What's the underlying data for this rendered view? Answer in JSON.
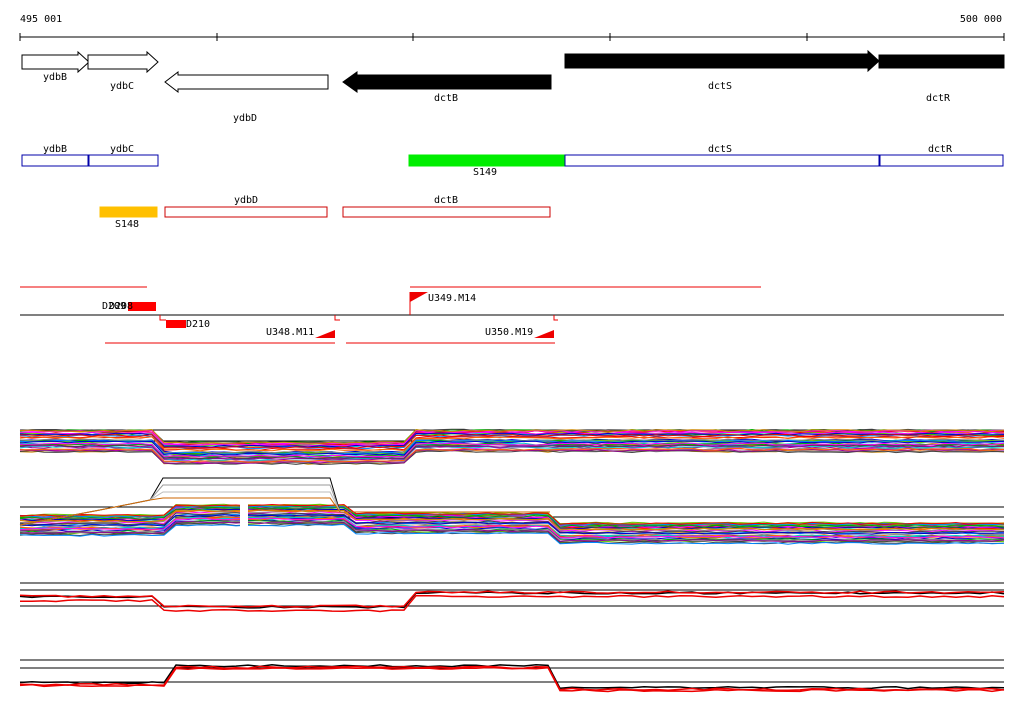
{
  "ruler": {
    "start": "495 001",
    "end": "500 000"
  },
  "genes": [
    {
      "label": "ydbB"
    },
    {
      "label": "ydbC"
    },
    {
      "label": "ydbD"
    },
    {
      "label": "dctB"
    },
    {
      "label": "dctS"
    },
    {
      "label": "dctR"
    }
  ],
  "units": [
    {
      "label": "ydbB"
    },
    {
      "label": "ydbC"
    },
    {
      "label": "S149"
    },
    {
      "label": "dctS"
    },
    {
      "label": "dctR"
    }
  ],
  "units_reverse": [
    {
      "label": "S148"
    },
    {
      "label": "ydbD"
    },
    {
      "label": "dctB"
    }
  ],
  "features": [
    {
      "label": "D209"
    },
    {
      "label": "D208"
    },
    {
      "label": "D210"
    },
    {
      "label": "U349.M14"
    },
    {
      "label": "U348.M11"
    },
    {
      "label": "U350.M19"
    }
  ]
}
